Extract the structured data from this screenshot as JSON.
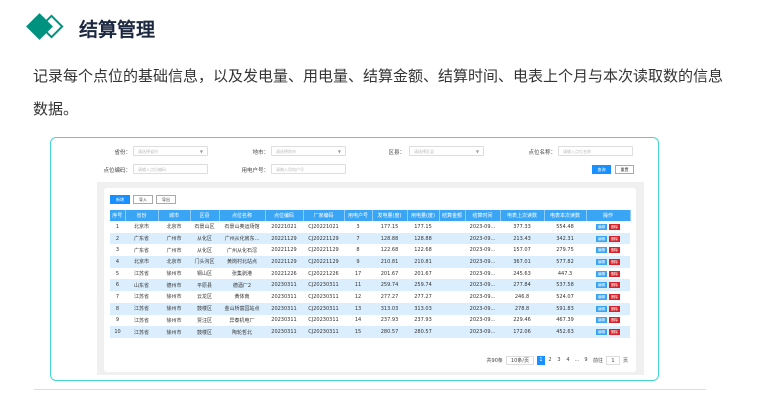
{
  "header": {
    "title": "结算管理",
    "icon": "diamond-logo-icon",
    "accent": "#00927f"
  },
  "description": "记录每个点位的基础信息，以及发电量、用电量、结算金额、结算时间、电表上个月与本次读取数的信息数据。",
  "form": {
    "province": {
      "label": "省份：",
      "placeholder": "请选择省份"
    },
    "city": {
      "label": "地市：",
      "placeholder": "请选择地市"
    },
    "district": {
      "label": "区县：",
      "placeholder": "请选择区县"
    },
    "site_name": {
      "label": "点位名称：",
      "placeholder": "请输入点位名称"
    },
    "site_code": {
      "label": "点位编码：",
      "placeholder": "请输入点位编码"
    },
    "account": {
      "label": "用电户号：",
      "placeholder": "请输入用电户号"
    },
    "query": "查询",
    "reset": "重置"
  },
  "toolbar": {
    "add": "新增",
    "import": "导入",
    "export": "导出"
  },
  "table": {
    "headers": [
      "序号",
      "省份",
      "城市",
      "区县",
      "点位名称",
      "点位编码",
      "厂家编码",
      "用电户号",
      "发电量(度)",
      "用电量(度)",
      "结算金额",
      "结算时间",
      "电表上次读数",
      "电表本次读数",
      "操作"
    ],
    "edit": "编辑",
    "delete": "删除",
    "rows": [
      [
        "1",
        "北京市",
        "北京市",
        "石景山区",
        "石景山奥运场馆",
        "20221021",
        "CJ20221021",
        "3",
        "177.15",
        "177.15",
        "",
        "2023-09...",
        "377.33",
        "554.48"
      ],
      [
        "2",
        "广东省",
        "广州市",
        "从化区",
        "广州从化房东...",
        "20221129",
        "CJ20221129",
        "7",
        "128.88",
        "128.88",
        "",
        "2023-09...",
        "213.43",
        "342.31"
      ],
      [
        "3",
        "广东省",
        "广州市",
        "从化区",
        "广州从化石滘",
        "20221129",
        "CJ20221129",
        "8",
        "122.68",
        "122.68",
        "",
        "2023-09...",
        "157.07",
        "279.75"
      ],
      [
        "4",
        "北京市",
        "北京市",
        "门头沟区",
        "黄岗村北站点",
        "20221129",
        "CJ20221129",
        "9",
        "210.81",
        "210.81",
        "",
        "2023-09...",
        "367.01",
        "577.82"
      ],
      [
        "5",
        "江苏省",
        "徐州市",
        "铜山区",
        "张集剥港",
        "20221226",
        "CJ20221226",
        "17",
        "201.67",
        "201.67",
        "",
        "2023-09...",
        "245.63",
        "447.3"
      ],
      [
        "6",
        "山东省",
        "德州市",
        "平原县",
        "德酒厂2",
        "20230311",
        "CJ20230311",
        "11",
        "259.74",
        "259.74",
        "",
        "2023-09...",
        "277.84",
        "537.58"
      ],
      [
        "7",
        "江苏省",
        "徐州市",
        "云龙区",
        "黄体南",
        "20230311",
        "CJ20230311",
        "12",
        "277.27",
        "277.27",
        "",
        "2023-09...",
        "246.8",
        "524.07"
      ],
      [
        "8",
        "江苏省",
        "徐州市",
        "鼓楼区",
        "金山桥富园站点",
        "20230311",
        "CJ20230311",
        "13",
        "313.03",
        "313.03",
        "",
        "2023-09...",
        "278.8",
        "591.83"
      ],
      [
        "9",
        "江苏省",
        "徐州市",
        "贾汪区",
        "异泰机电厂",
        "20230311",
        "CJ20230311",
        "14",
        "237.93",
        "237.93",
        "",
        "2023-09...",
        "229.46",
        "467.39"
      ],
      [
        "10",
        "江苏省",
        "徐州市",
        "鼓楼区",
        "陶轮哲北",
        "20230311",
        "CJ20230311",
        "15",
        "280.57",
        "280.57",
        "",
        "2023-09...",
        "172.06",
        "452.63"
      ]
    ]
  },
  "pagination": {
    "total": "共90条",
    "page_size": "10条/页",
    "pages": [
      "1",
      "2",
      "3",
      "4",
      "...",
      "9"
    ],
    "current": "1",
    "goto": "前往",
    "goto_value": "1",
    "page_unit": "页"
  }
}
